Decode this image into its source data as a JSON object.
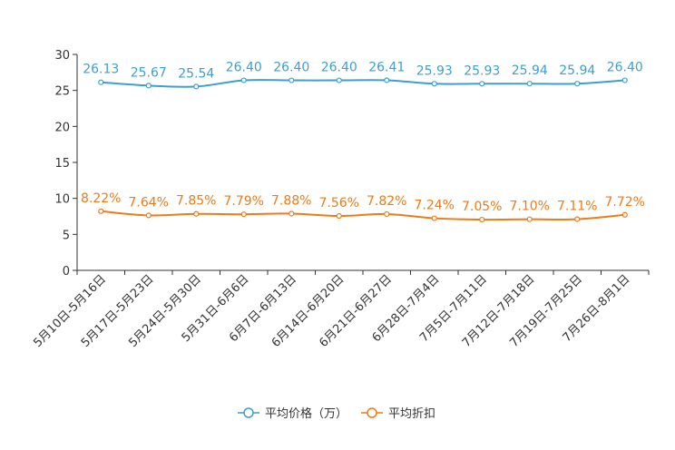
{
  "chart_data": {
    "type": "line",
    "title": "",
    "xlabel": "",
    "ylabel": "",
    "ylim": [
      0,
      30
    ],
    "yticks": [
      0,
      5,
      10,
      15,
      20,
      25,
      30
    ],
    "categories": [
      "5月10日-5月16日",
      "5月17日-5月23日",
      "5月24日-5月30日",
      "5月31日-6月6日",
      "6月7日-6月13日",
      "6月14日-6月20日",
      "6月21日-6月27日",
      "6月28日-7月4日",
      "7月5日-7月11日",
      "7月12日-7月18日",
      "7月19日-7月25日",
      "7月26日-8月1日"
    ],
    "series": [
      {
        "name": "平均价格（万）",
        "color": "#3c9fd0",
        "values": [
          26.13,
          25.67,
          25.54,
          26.4,
          26.4,
          26.4,
          26.41,
          25.93,
          25.93,
          25.94,
          25.94,
          26.4
        ],
        "labels": [
          "26.13",
          "25.67",
          "25.54",
          "26.40",
          "26.40",
          "26.40",
          "26.41",
          "25.93",
          "25.93",
          "25.94",
          "25.94",
          "26.40"
        ]
      },
      {
        "name": "平均折扣",
        "color": "#f07a16",
        "values": [
          8.22,
          7.64,
          7.85,
          7.79,
          7.88,
          7.56,
          7.82,
          7.24,
          7.05,
          7.1,
          7.11,
          7.72
        ],
        "labels": [
          "8.22%",
          "7.64%",
          "7.85%",
          "7.79%",
          "7.88%",
          "7.56%",
          "7.82%",
          "7.24%",
          "7.05%",
          "7.10%",
          "7.11%",
          "7.72%"
        ]
      }
    ],
    "legend": {
      "position": "bottom"
    }
  }
}
